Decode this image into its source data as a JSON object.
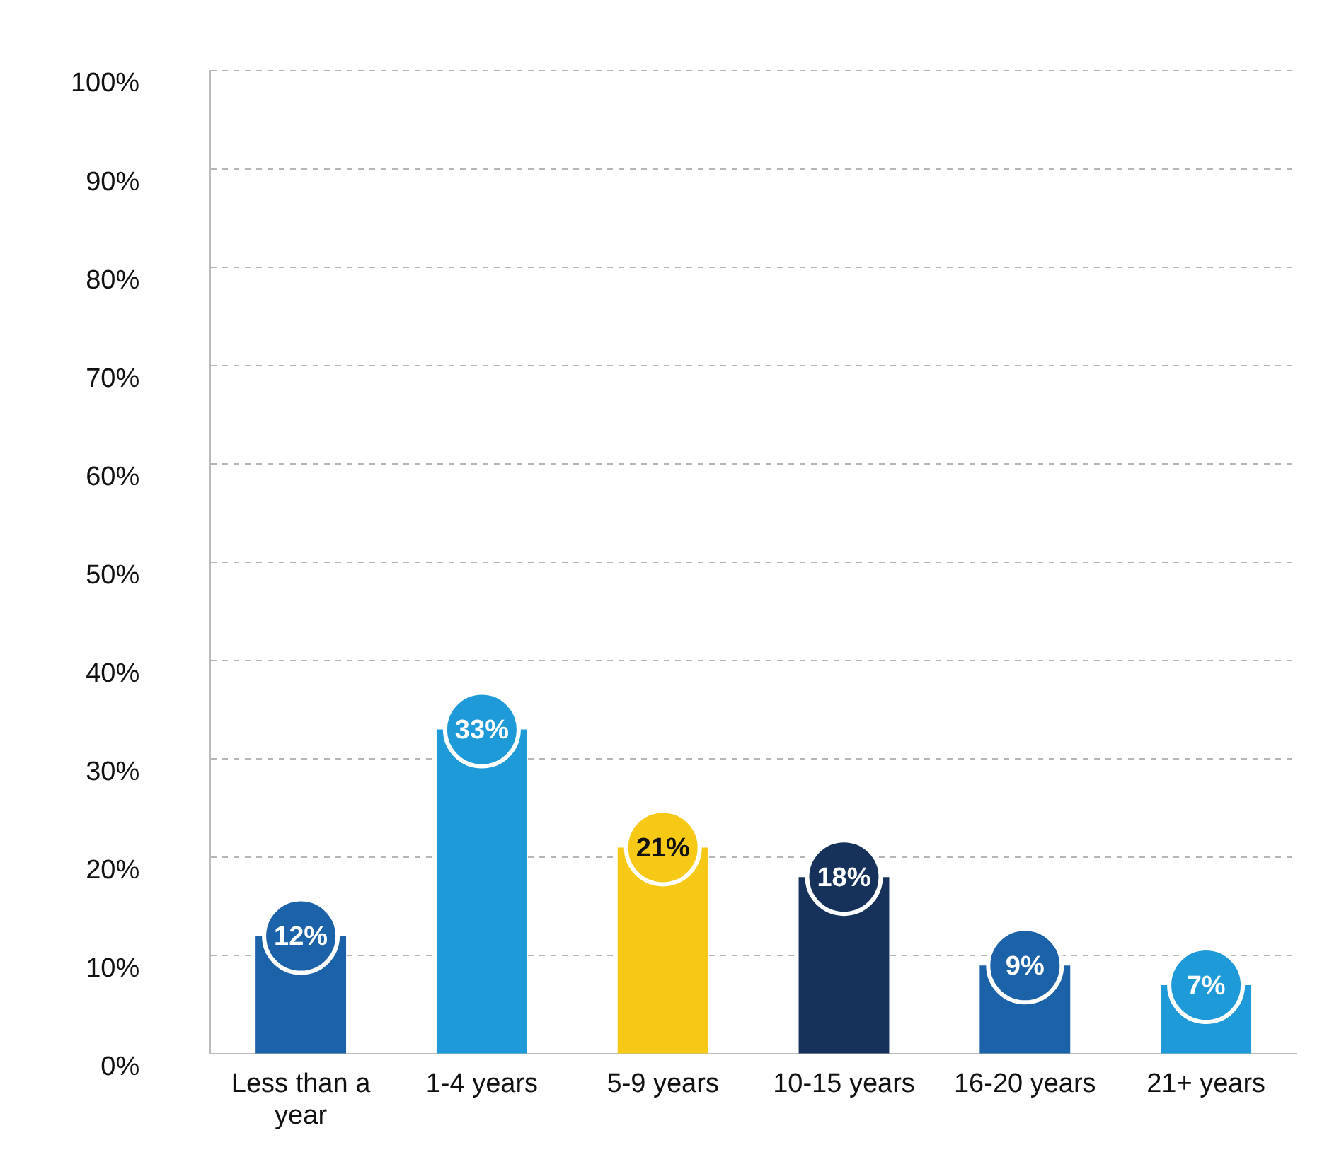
{
  "chart_data": {
    "type": "bar",
    "categories": [
      "Less than a year",
      "1-4 years",
      "5-9 years",
      "10-15 years",
      "16-20 years",
      "21+ years"
    ],
    "values": [
      12,
      33,
      21,
      18,
      9,
      7
    ],
    "colors": [
      "#1b62a8",
      "#1f9ad8",
      "#f6c916",
      "#16325a",
      "#1b62a8",
      "#1f9ad8"
    ],
    "value_labels": [
      "12%",
      "33%",
      "21%",
      "18%",
      "9%",
      "7%"
    ],
    "ylim": [
      0,
      100
    ],
    "yticks": [
      {
        "value": 0,
        "label": "0%"
      },
      {
        "value": 10,
        "label": "10%"
      },
      {
        "value": 20,
        "label": "20%"
      },
      {
        "value": 30,
        "label": "30%"
      },
      {
        "value": 40,
        "label": "40%"
      },
      {
        "value": 50,
        "label": "50%"
      },
      {
        "value": 60,
        "label": "60%"
      },
      {
        "value": 70,
        "label": "70%"
      },
      {
        "value": 80,
        "label": "80%"
      },
      {
        "value": 90,
        "label": "90%"
      },
      {
        "value": 100,
        "label": "100%"
      }
    ],
    "grid": "y",
    "legend": false
  }
}
